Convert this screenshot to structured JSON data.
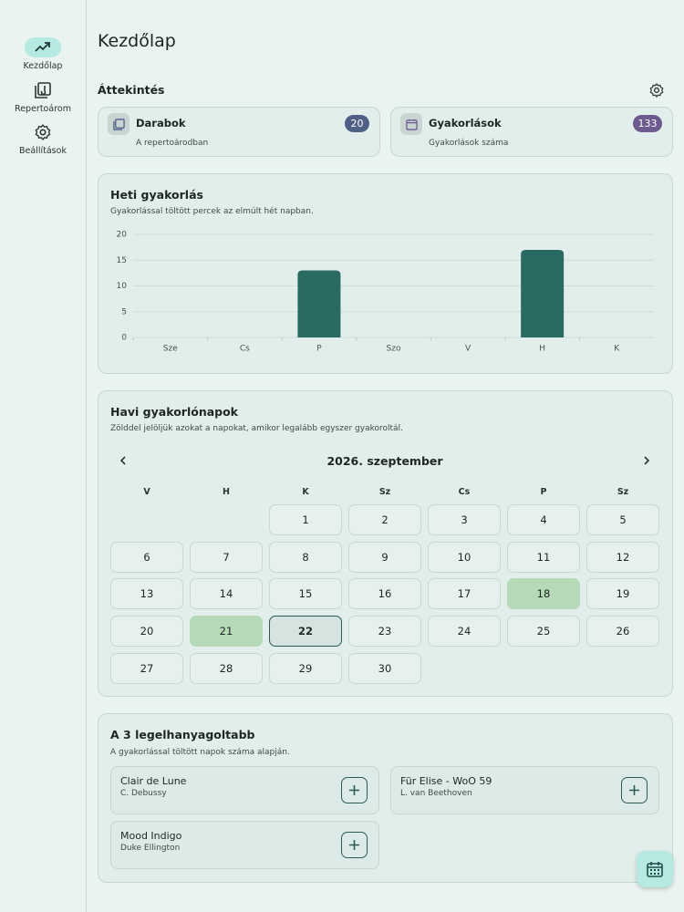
{
  "sidebar": {
    "items": [
      {
        "label": "Kezdőlap",
        "active": true
      },
      {
        "label": "Repertoárom",
        "active": false
      },
      {
        "label": "Beállítások",
        "active": false
      }
    ]
  },
  "header": {
    "title": "Kezdőlap"
  },
  "overview": {
    "title": "Áttekintés",
    "cards": [
      {
        "title": "Darabok",
        "count": 20,
        "subtitle": "A repertoárodban",
        "color": "#4f5f86"
      },
      {
        "title": "Gyakorlások",
        "count": 133,
        "subtitle": "Gyakorlások száma",
        "color": "#6d5a8e"
      }
    ]
  },
  "weekly": {
    "title": "Heti gyakorlás",
    "subtitle": "Gyakorlással töltött percek az elmúlt hét napban.",
    "chart_data": {
      "type": "bar",
      "categories": [
        "Sze",
        "Cs",
        "P",
        "Szo",
        "V",
        "H",
        "K"
      ],
      "values": [
        0,
        0,
        13,
        0,
        0,
        17,
        0
      ],
      "color": "#2b6a62",
      "ylim": [
        0,
        20
      ],
      "yticks": [
        0,
        5,
        10,
        15,
        20
      ],
      "grid": true
    }
  },
  "monthly": {
    "title": "Havi gyakorlónapok",
    "subtitle": "Zölddel jelöljük azokat a napokat, amikor legalább egyszer gyakoroltál.",
    "month": "2026. szeptember",
    "weekdays": [
      "V",
      "H",
      "K",
      "Sz",
      "Cs",
      "P",
      "Sz"
    ],
    "days": [
      null,
      null,
      {
        "day": 1
      },
      {
        "day": 2
      },
      {
        "day": 3
      },
      {
        "day": 4
      },
      {
        "day": 5
      },
      {
        "day": 6
      },
      {
        "day": 7
      },
      {
        "day": 8
      },
      {
        "day": 9
      },
      {
        "day": 10
      },
      {
        "day": 11
      },
      {
        "day": 12
      },
      {
        "day": 13
      },
      {
        "day": 14
      },
      {
        "day": 15
      },
      {
        "day": 16
      },
      {
        "day": 17
      },
      {
        "day": 18,
        "practiced": true
      },
      {
        "day": 19
      },
      {
        "day": 20
      },
      {
        "day": 21,
        "practiced": true
      },
      {
        "day": 22,
        "today": true
      },
      {
        "day": 23
      },
      {
        "day": 24
      },
      {
        "day": 25
      },
      {
        "day": 26
      },
      {
        "day": 27
      },
      {
        "day": 28
      },
      {
        "day": 29
      },
      {
        "day": 30
      }
    ]
  },
  "neglected": {
    "title": "A 3 legelhanyagoltabb",
    "subtitle": "A gyakorlással töltött napok száma alapján.",
    "pieces": [
      {
        "title": "Clair de Lune",
        "composer": "C. Debussy"
      },
      {
        "title": "Für Elise - WoO 59",
        "composer": "L. van Beethoven"
      },
      {
        "title": "Mood Indigo",
        "composer": "Duke Ellington"
      }
    ]
  }
}
